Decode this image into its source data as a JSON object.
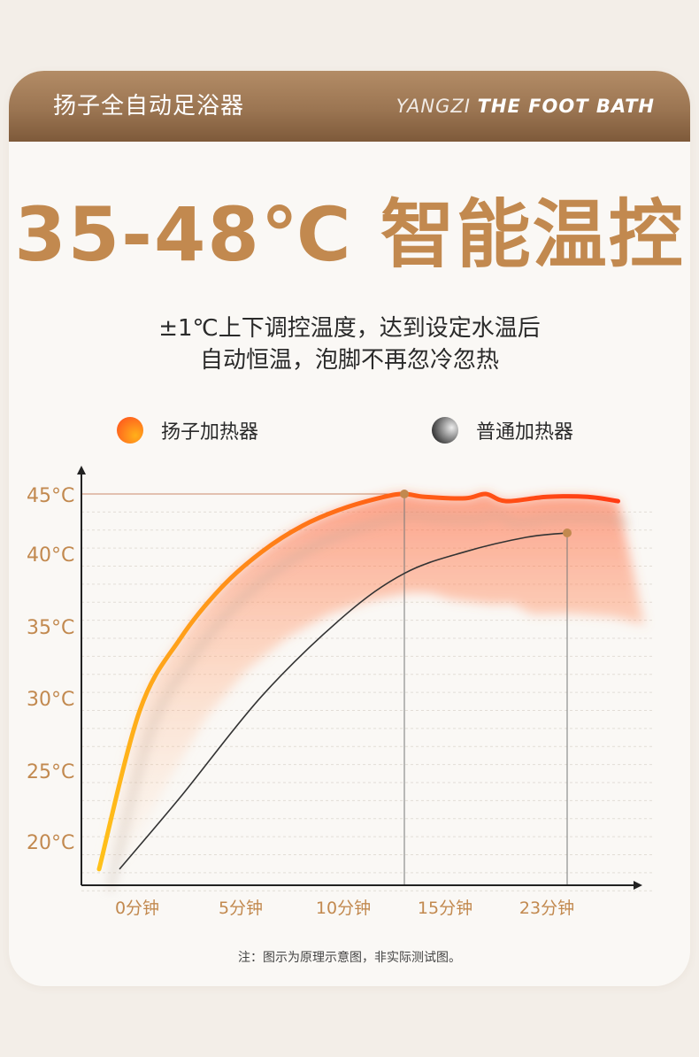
{
  "header": {
    "brand": "扬子全自动足浴器",
    "brand_en_light": "YANGZI",
    "brand_en_bold": "THE FOOT BATH"
  },
  "headline": "35-48℃ 智能温控",
  "description": [
    "±1℃上下调控温度，达到设定水温后",
    "自动恒温，泡脚不再忽冷忽热"
  ],
  "legend": [
    {
      "label": "扬子加热器",
      "gradient": [
        "#ff5a1e",
        "#ffb01a"
      ]
    },
    {
      "label": "普通加热器",
      "gradient": [
        "#1c1c1c",
        "#ececec"
      ]
    }
  ],
  "colors": {
    "accent": "#c2894f",
    "axis_label": "#c2894f",
    "yangzi_line": "#ff4a16",
    "normal_line": "#333333"
  },
  "chart_data": {
    "type": "line",
    "title": "",
    "xlabel": "",
    "ylabel": "",
    "categories": [
      "0分钟",
      "5分钟",
      "10分钟",
      "15分钟",
      "23分钟"
    ],
    "y_ticks": [
      "45°C",
      "40°C",
      "35°C",
      "30°C",
      "25°C",
      "20°C"
    ],
    "ylim": [
      17,
      46
    ],
    "grid": true,
    "series": [
      {
        "name": "扬子加热器",
        "x": [
          0,
          2,
          4,
          6,
          8,
          10,
          12,
          14,
          15,
          16,
          18,
          19,
          20,
          22,
          24,
          25.5
        ],
        "y": [
          19,
          30,
          35,
          38.5,
          41,
          42.8,
          44,
          44.8,
          45,
          44.8,
          44.7,
          45,
          44.5,
          44.8,
          44.8,
          44.5
        ],
        "marker_at": 15
      },
      {
        "name": "普通加热器",
        "x": [
          1,
          4,
          8,
          12,
          15,
          18,
          21,
          23
        ],
        "y": [
          19,
          24,
          31,
          36.5,
          39.5,
          41,
          42,
          42.3
        ],
        "marker_at": 23
      }
    ],
    "reference_line": 45
  },
  "note": "注：图示为原理示意图，非实际测试图。"
}
